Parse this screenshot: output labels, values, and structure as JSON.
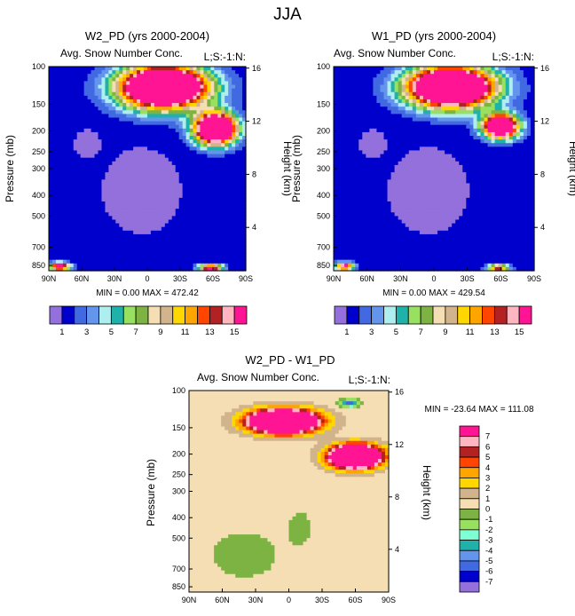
{
  "figure_title": "JJA",
  "colors": {
    "palette": [
      "#9370DB",
      "#0000CD",
      "#4169E1",
      "#6495ED",
      "#AFEEEE",
      "#20B2AA",
      "#98E060",
      "#7CB342",
      "#F5DEB3",
      "#D2B48C",
      "#FFD700",
      "#FFA500",
      "#FF4500",
      "#B22222",
      "#FFB6C1",
      "#FF1493"
    ],
    "diff_palette": [
      "#9370DB",
      "#0000CD",
      "#4169E1",
      "#6495ED",
      "#20B2AA",
      "#7FFFD4",
      "#98E060",
      "#7CB342",
      "#F5DEB3",
      "#D2B48C",
      "#FFD700",
      "#FFA500",
      "#FF4500",
      "#B22222",
      "#FFB6C1",
      "#FF1493"
    ]
  },
  "chart_data": [
    {
      "type": "heatmap",
      "title": "W2_PD (yrs 2000-2004)",
      "subtitle_left": "Avg. Snow Number Conc.",
      "subtitle_right": "L;S:-1:N:",
      "xlabel": "",
      "ylabel": "Pressure (mb)",
      "ylabel_right": "Height (km)",
      "x_ticks": [
        "90N",
        "60N",
        "30N",
        "0",
        "30S",
        "60S",
        "90S"
      ],
      "y_ticks": [
        100,
        150,
        200,
        250,
        300,
        400,
        500,
        700,
        850
      ],
      "y_ticks_right": [
        16,
        12,
        8,
        4
      ],
      "stats": "MIN =  0.00  MAX = 472.42",
      "colorbar_labels": [
        "1",
        "3",
        "5",
        "7",
        "9",
        "11",
        "13",
        "15"
      ],
      "blobs": [
        {
          "lat": -15,
          "p": 125,
          "rlat": 38,
          "rlogp": 0.22,
          "v": 30
        },
        {
          "lat": -62,
          "p": 195,
          "rlat": 18,
          "rlogp": 0.16,
          "v": 28
        },
        {
          "lat": 80,
          "p": 860,
          "rlat": 9,
          "rlogp": 0.04,
          "v": 18
        },
        {
          "lat": -58,
          "p": 870,
          "rlat": 10,
          "rlogp": 0.035,
          "v": 18
        },
        {
          "lat": 5,
          "p": 380,
          "rlat": 22,
          "rlogp": 0.28,
          "v": -3
        },
        {
          "lat": 55,
          "p": 230,
          "rlat": 8,
          "rlogp": 0.1,
          "v": -2
        }
      ]
    },
    {
      "type": "heatmap",
      "title": "W1_PD (yrs 2000-2004)",
      "subtitle_left": "Avg. Snow Number Conc.",
      "subtitle_right": "L;S:-1:N:",
      "xlabel": "",
      "ylabel": "Pressure (mb)",
      "ylabel_right": "Height (km)",
      "x_ticks": [
        "90N",
        "60N",
        "30N",
        "0",
        "30S",
        "60S",
        "90S"
      ],
      "y_ticks": [
        100,
        150,
        200,
        250,
        300,
        400,
        500,
        700,
        850
      ],
      "y_ticks_right": [
        16,
        12,
        8,
        4
      ],
      "stats": "MIN =  0.00  MAX = 429.54",
      "colorbar_labels": [
        "1",
        "3",
        "5",
        "7",
        "9",
        "11",
        "13",
        "15"
      ],
      "blobs": [
        {
          "lat": -15,
          "p": 125,
          "rlat": 37,
          "rlogp": 0.21,
          "v": 30
        },
        {
          "lat": -60,
          "p": 190,
          "rlat": 15,
          "rlogp": 0.12,
          "v": 26
        },
        {
          "lat": 80,
          "p": 860,
          "rlat": 8,
          "rlogp": 0.04,
          "v": 16
        },
        {
          "lat": -58,
          "p": 870,
          "rlat": 9,
          "rlogp": 0.03,
          "v": 16
        },
        {
          "lat": 5,
          "p": 380,
          "rlat": 22,
          "rlogp": 0.28,
          "v": -3
        },
        {
          "lat": 55,
          "p": 230,
          "rlat": 8,
          "rlogp": 0.1,
          "v": -2
        }
      ]
    },
    {
      "type": "heatmap",
      "title": "W2_PD - W1_PD",
      "subtitle_left": "Avg. Snow Number Conc.",
      "subtitle_right": "L;S:-1:N:",
      "xlabel": "",
      "ylabel": "Pressure (mb)",
      "ylabel_right": "Height (km)",
      "x_ticks": [
        "90N",
        "60N",
        "30N",
        "0",
        "30S",
        "60S",
        "90S"
      ],
      "y_ticks": [
        100,
        150,
        200,
        250,
        300,
        400,
        500,
        700,
        850
      ],
      "y_ticks_right": [
        16,
        12,
        8,
        4
      ],
      "stats": "MIN = -23.64   MAX = 111.08",
      "colorbar_labels": [
        "7",
        "6",
        "5",
        "4",
        "3",
        "2",
        "1",
        "0",
        "-1",
        "-2",
        "-3",
        "-4",
        "-5",
        "-6",
        "-7"
      ],
      "blobs": [
        {
          "lat": 5,
          "p": 140,
          "rlat": 30,
          "rlogp": 0.12,
          "v": 20
        },
        {
          "lat": -60,
          "p": 205,
          "rlat": 22,
          "rlogp": 0.12,
          "v": 20
        },
        {
          "lat": -55,
          "p": 115,
          "rlat": 8,
          "rlogp": 0.04,
          "v": -6
        },
        {
          "lat": 40,
          "p": 600,
          "rlat": 30,
          "rlogp": 0.25,
          "v": -1
        },
        {
          "lat": -10,
          "p": 450,
          "rlat": 10,
          "rlogp": 0.18,
          "v": -1
        }
      ]
    }
  ]
}
